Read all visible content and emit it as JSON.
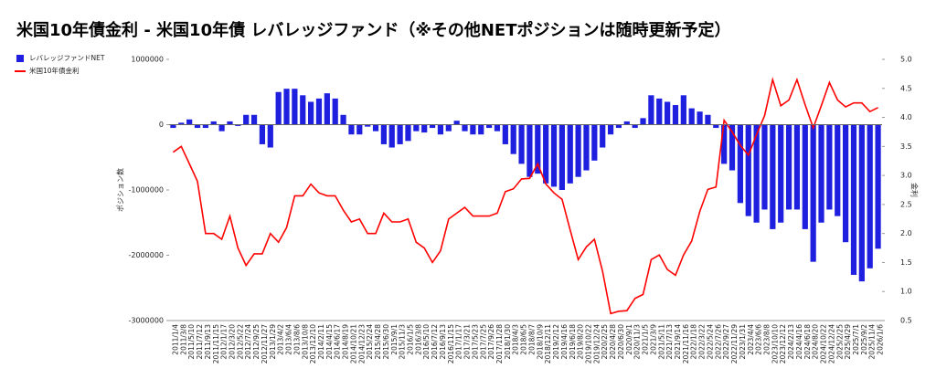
{
  "chart_data": {
    "type": "combo",
    "title": "米国10年債金利 - 米国10年債 レバレッジファンド（※その他NETポジションは随時更新予定）",
    "y_label": "ポジション数",
    "y2_label": "金利",
    "categories": [
      "2011/1/4",
      "2011/3/8",
      "2011/5/10",
      "2011/7/12",
      "2011/9/13",
      "2011/11/15",
      "2012/1/17",
      "2012/3/20",
      "2012/5/22",
      "2012/7/24",
      "2012/9/25",
      "2012/11/27",
      "2013/1/29",
      "2013/4/2",
      "2013/6/4",
      "2013/8/6",
      "2013/10/8",
      "2013/12/10",
      "2014/2/11",
      "2014/4/15",
      "2014/6/17",
      "2014/8/19",
      "2014/10/21",
      "2014/12/23",
      "2015/2/24",
      "2015/4/28",
      "2015/6/30",
      "2015/9/1",
      "2015/11/3",
      "2016/1/5",
      "2016/3/8",
      "2016/5/10",
      "2016/7/12",
      "2016/9/13",
      "2016/11/15",
      "2017/1/17",
      "2017/3/21",
      "2017/5/23",
      "2017/7/25",
      "2017/9/26",
      "2017/11/28",
      "2018/1/30",
      "2018/4/3",
      "2018/6/5",
      "2018/8/7",
      "2018/10/9",
      "2018/12/11",
      "2019/2/12",
      "2019/4/16",
      "2019/6/18",
      "2019/8/20",
      "2019/10/22",
      "2019/12/24",
      "2020/2/25",
      "2020/4/28",
      "2020/6/30",
      "2020/9/1",
      "2020/11/3",
      "2021/1/5",
      "2021/3/9",
      "2021/5/11",
      "2021/7/13",
      "2021/9/14",
      "2021/11/16",
      "2022/1/18",
      "2022/3/22",
      "2022/5/24",
      "2022/7/26",
      "2022/9/27",
      "2022/11/29",
      "2023/1/31",
      "2023/4/4",
      "2023/6/6",
      "2023/8/8",
      "2023/10/10",
      "2023/12/12",
      "2024/2/13",
      "2024/4/16",
      "2024/6/18",
      "2024/8/20",
      "2024/10/22",
      "2024/12/24",
      "2025/2/25",
      "2025/4/29",
      "2025/7/1",
      "2025/9/2",
      "2025/11/4",
      "2026/1/6"
    ],
    "series": [
      {
        "name": "レバレッジファンドNET",
        "type": "bar",
        "color": "#1f1fe0",
        "values": [
          -50000,
          30000,
          80000,
          -50000,
          -50000,
          50000,
          -100000,
          50000,
          -20000,
          150000,
          150000,
          -300000,
          -350000,
          500000,
          550000,
          550000,
          450000,
          350000,
          400000,
          480000,
          400000,
          150000,
          -150000,
          -150000,
          -30000,
          -100000,
          -300000,
          -350000,
          -300000,
          -250000,
          -100000,
          -120000,
          -50000,
          -150000,
          -100000,
          60000,
          -100000,
          -150000,
          -150000,
          -50000,
          -100000,
          -300000,
          -450000,
          -600000,
          -800000,
          -750000,
          -900000,
          -950000,
          -1000000,
          -900000,
          -800000,
          -700000,
          -550000,
          -350000,
          -150000,
          -50000,
          50000,
          -50000,
          100000,
          450000,
          400000,
          350000,
          300000,
          450000,
          250000,
          200000,
          150000,
          -50000,
          -600000,
          -700000,
          -1200000,
          -1400000,
          -1500000,
          -1300000,
          -1600000,
          -1500000,
          -1300000,
          -1300000,
          -1600000,
          -2100000,
          -1500000,
          -1300000,
          -1400000,
          -1800000,
          -2300000,
          -2400000,
          -2200000,
          -1900000
        ]
      },
      {
        "name": "米国10年債金利",
        "type": "line",
        "axis": "y2",
        "color": "#ff0000",
        "values": [
          3.4,
          3.5,
          3.2,
          2.9,
          2.0,
          2.0,
          1.9,
          2.3,
          1.75,
          1.45,
          1.65,
          1.65,
          2.0,
          1.85,
          2.1,
          2.65,
          2.65,
          2.85,
          2.7,
          2.65,
          2.65,
          2.4,
          2.2,
          2.25,
          2.0,
          2.0,
          2.35,
          2.2,
          2.2,
          2.25,
          1.85,
          1.75,
          1.5,
          1.7,
          2.25,
          2.35,
          2.45,
          2.3,
          2.3,
          2.3,
          2.35,
          2.72,
          2.77,
          2.94,
          2.95,
          3.2,
          2.85,
          2.7,
          2.59,
          2.06,
          1.55,
          1.77,
          1.9,
          1.35,
          0.62,
          0.66,
          0.67,
          0.88,
          0.95,
          1.55,
          1.63,
          1.38,
          1.28,
          1.63,
          1.87,
          2.38,
          2.76,
          2.8,
          3.95,
          3.75,
          3.52,
          3.35,
          3.7,
          4.03,
          4.65,
          4.2,
          4.3,
          4.65,
          4.22,
          3.82,
          4.2,
          4.6,
          4.3,
          4.18,
          4.25,
          4.25,
          4.1,
          4.17
        ]
      }
    ],
    "ylim": [
      -3000000,
      1000000
    ],
    "yticks": [
      1000000,
      0,
      -1000000,
      -2000000,
      -3000000
    ],
    "y2lim": [
      0.5,
      5.0
    ],
    "y2ticks": [
      0.5,
      {
        "value": 1,
        "label": "1.0"
      },
      1.5,
      {
        "value": 2,
        "label": "2.0"
      },
      2.5,
      {
        "value": 3,
        "label": "3.0"
      },
      3.5,
      {
        "value": 4,
        "label": "4.0"
      },
      4.5,
      {
        "value": 5,
        "label": "5.0"
      }
    ],
    "legend": "top-left"
  }
}
